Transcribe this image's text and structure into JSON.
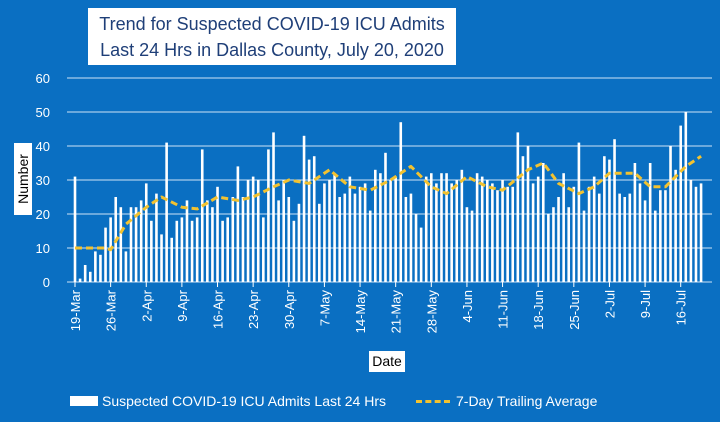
{
  "chart_data": {
    "type": "bar",
    "title": "Trend for Suspected COVID-19 ICU Admits Last 24 Hrs in Dallas County, July 20, 2020",
    "xlabel": "Date",
    "ylabel": "Number",
    "ylim": [
      0,
      60
    ],
    "yticks": [
      0,
      10,
      20,
      30,
      40,
      50,
      60
    ],
    "xticks": [
      "19-Mar",
      "26-Mar",
      "2-Apr",
      "9-Apr",
      "16-Apr",
      "23-Apr",
      "30-Apr",
      "7-May",
      "14-May",
      "21-May",
      "28-May",
      "4-Jun",
      "11-Jun",
      "18-Jun",
      "25-Jun",
      "2-Jul",
      "9-Jul",
      "16-Jul"
    ],
    "grid": true,
    "legend_position": "bottom",
    "x_start": "19-Mar",
    "x_end": "20-Jul",
    "series": [
      {
        "name": "Suspected COVID-19 ICU Admits Last 24 Hrs",
        "type": "bar",
        "color": "#ffffff",
        "values": [
          31,
          1,
          5,
          3,
          9,
          8,
          16,
          19,
          25,
          22,
          9,
          22,
          22,
          24,
          29,
          18,
          26,
          14,
          41,
          13,
          18,
          19,
          24,
          18,
          19,
          39,
          24,
          22,
          28,
          18,
          19,
          25,
          34,
          25,
          30,
          31,
          30,
          19,
          39,
          44,
          24,
          30,
          25,
          18,
          23,
          43,
          36,
          37,
          23,
          29,
          30,
          32,
          25,
          26,
          31,
          26,
          28,
          29,
          21,
          33,
          32,
          38,
          30,
          31,
          47,
          25,
          26,
          20,
          16,
          31,
          32,
          29,
          32,
          32,
          29,
          30,
          33,
          22,
          21,
          32,
          31,
          30,
          29,
          27,
          30,
          28,
          28,
          44,
          37,
          40,
          29,
          31,
          35,
          20,
          22,
          25,
          32,
          22,
          28,
          41,
          21,
          28,
          31,
          26,
          37,
          36,
          42,
          26,
          25,
          26,
          35,
          29,
          24,
          35,
          21,
          27,
          27,
          40,
          33,
          46,
          50,
          30,
          28,
          29
        ]
      },
      {
        "name": "7-Day Trailing Average",
        "type": "line",
        "color": "#f2c230",
        "points": [
          [
            "19-Mar",
            10
          ],
          [
            "25-Mar",
            10
          ],
          [
            "26-Mar",
            9.5
          ],
          [
            "29-Mar",
            17
          ],
          [
            "2-Apr",
            22
          ],
          [
            "5-Apr",
            25
          ],
          [
            "9-Apr",
            22
          ],
          [
            "12-Apr",
            21.5
          ],
          [
            "16-Apr",
            25
          ],
          [
            "20-Apr",
            24
          ],
          [
            "23-Apr",
            25
          ],
          [
            "27-Apr",
            28
          ],
          [
            "30-Apr",
            30
          ],
          [
            "4-May",
            29
          ],
          [
            "8-May",
            33
          ],
          [
            "12-May",
            28
          ],
          [
            "16-May",
            27
          ],
          [
            "20-May",
            30
          ],
          [
            "24-May",
            34
          ],
          [
            "28-May",
            28
          ],
          [
            "31-May",
            26
          ],
          [
            "4-Jun",
            31
          ],
          [
            "8-Jun",
            28
          ],
          [
            "11-Jun",
            27
          ],
          [
            "16-Jun",
            33
          ],
          [
            "19-Jun",
            35
          ],
          [
            "22-Jun",
            29
          ],
          [
            "26-Jun",
            26
          ],
          [
            "29-Jun",
            28
          ],
          [
            "2-Jul",
            32
          ],
          [
            "7-Jul",
            32
          ],
          [
            "10-Jul",
            28
          ],
          [
            "13-Jul",
            28
          ],
          [
            "17-Jul",
            34
          ],
          [
            "20-Jul",
            37
          ]
        ]
      }
    ]
  }
}
